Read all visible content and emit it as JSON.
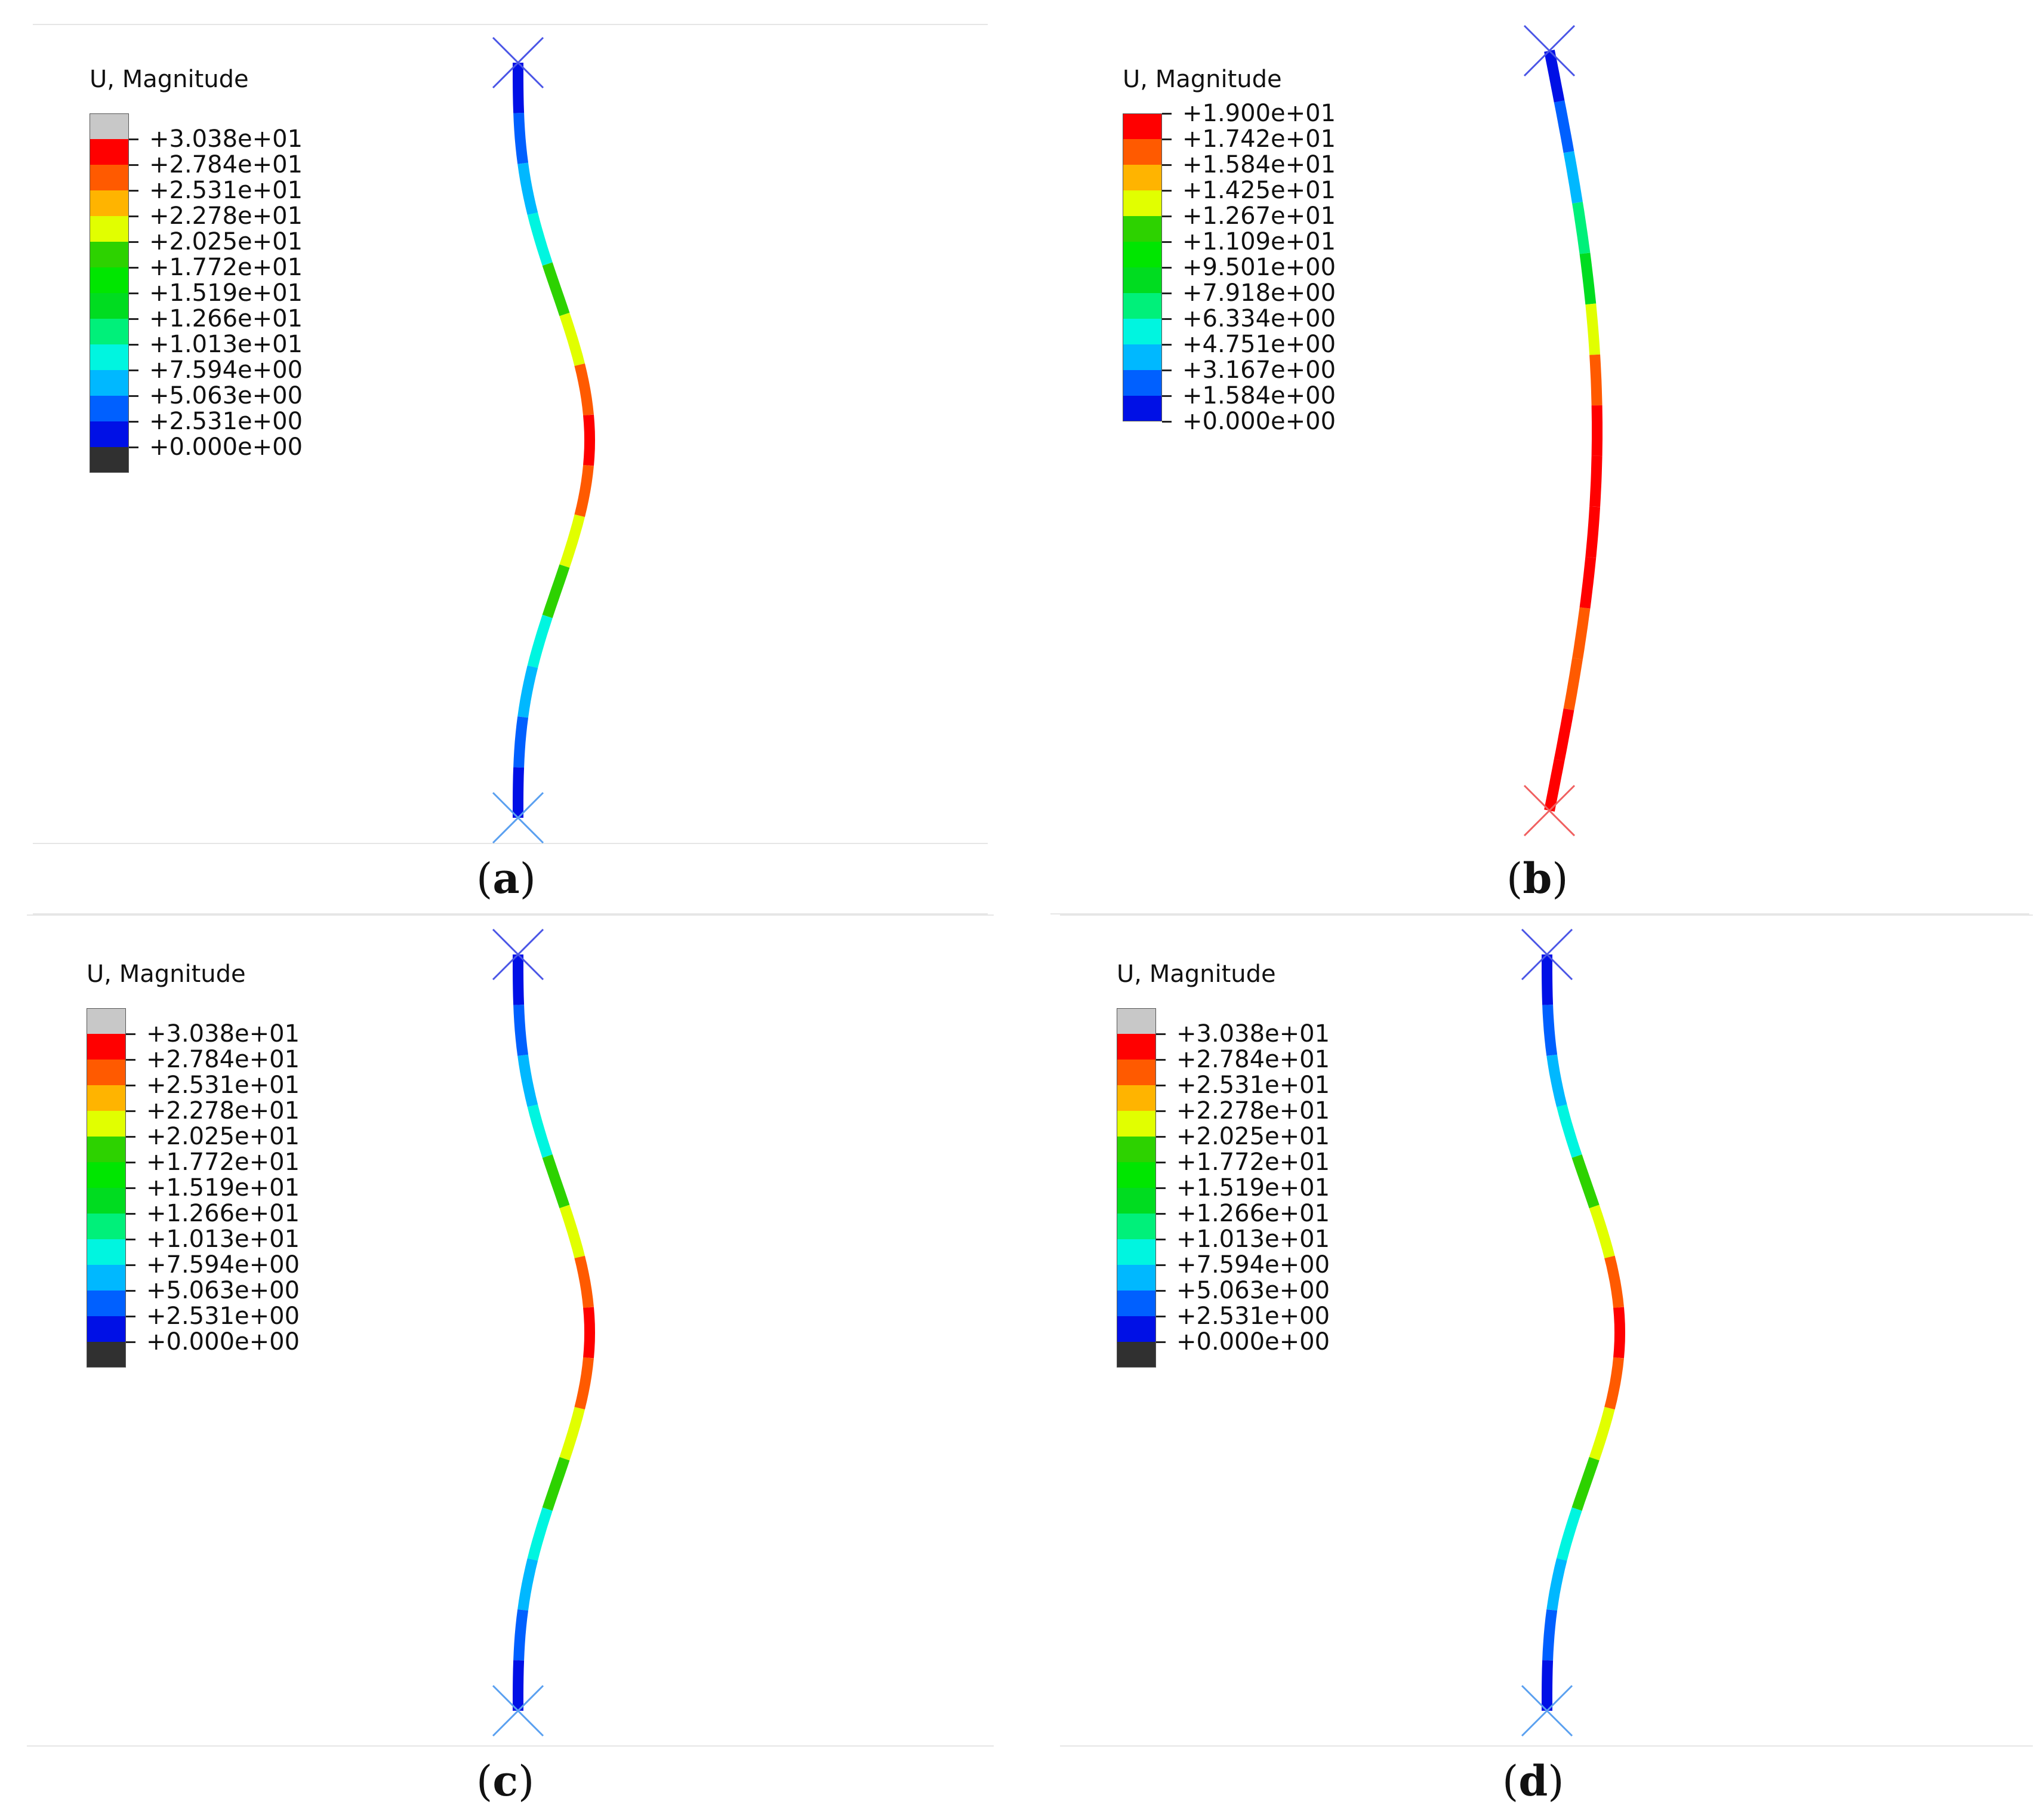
{
  "panels": [
    {
      "id": "a",
      "caption_letter": "a",
      "legend_title": "U, Magnitude",
      "legend_values": [
        "+3.038e+01",
        "+2.784e+01",
        "+2.531e+01",
        "+2.278e+01",
        "+2.025e+01",
        "+1.772e+01",
        "+1.519e+01",
        "+1.266e+01",
        "+1.013e+01",
        "+7.594e+00",
        "+5.063e+00",
        "+2.531e+00",
        "+0.000e+00"
      ],
      "legend_colors": [
        "#c8c8c8",
        "#ff0000",
        "#ff5a00",
        "#ffb400",
        "#e1ff00",
        "#2dd200",
        "#00e600",
        "#00dc20",
        "#00f07a",
        "#00f5e0",
        "#00b8ff",
        "#0060ff",
        "#0010e6",
        "#303030"
      ],
      "beam_profile": "sine",
      "beam_colors": [
        "#0010e6",
        "#0060ff",
        "#00b8ff",
        "#00f5e0",
        "#2dd200",
        "#e1ff00",
        "#ff5a00",
        "#ff0000",
        "#ff5a00",
        "#e1ff00",
        "#2dd200",
        "#00f5e0",
        "#00b8ff",
        "#0060ff",
        "#0010e6"
      ],
      "support_top_color": "#4a55e6",
      "support_bottom_color": "#5aa0f0"
    },
    {
      "id": "b",
      "caption_letter": "b",
      "legend_title": "U, Magnitude",
      "legend_values": [
        "+1.900e+01",
        "+1.742e+01",
        "+1.584e+01",
        "+1.425e+01",
        "+1.267e+01",
        "+1.109e+01",
        "+9.501e+00",
        "+7.918e+00",
        "+6.334e+00",
        "+4.751e+00",
        "+3.167e+00",
        "+1.584e+00",
        "+0.000e+00"
      ],
      "legend_colors": [
        "#ff0000",
        "#ff5a00",
        "#ffb400",
        "#e1ff00",
        "#2dd200",
        "#00e600",
        "#00dc20",
        "#00f07a",
        "#00f5e0",
        "#00b8ff",
        "#0060ff",
        "#0010e6"
      ],
      "beam_profile": "bow",
      "beam_colors": [
        "#0010e6",
        "#0060ff",
        "#00b8ff",
        "#00f07a",
        "#00dc20",
        "#e1ff00",
        "#ff5a00",
        "#ff0000",
        "#ff0000",
        "#ff0000",
        "#ff0000",
        "#ff5a00",
        "#ff5a00",
        "#ff0000",
        "#ff0000"
      ],
      "support_top_color": "#4a55e6",
      "support_bottom_color": "#f06060"
    },
    {
      "id": "c",
      "caption_letter": "c",
      "legend_title": "U, Magnitude",
      "legend_values": [
        "+3.038e+01",
        "+2.784e+01",
        "+2.531e+01",
        "+2.278e+01",
        "+2.025e+01",
        "+1.772e+01",
        "+1.519e+01",
        "+1.266e+01",
        "+1.013e+01",
        "+7.594e+00",
        "+5.063e+00",
        "+2.531e+00",
        "+0.000e+00"
      ],
      "legend_colors": [
        "#c8c8c8",
        "#ff0000",
        "#ff5a00",
        "#ffb400",
        "#e1ff00",
        "#2dd200",
        "#00e600",
        "#00dc20",
        "#00f07a",
        "#00f5e0",
        "#00b8ff",
        "#0060ff",
        "#0010e6",
        "#303030"
      ],
      "beam_profile": "sine",
      "beam_colors": [
        "#0010e6",
        "#0060ff",
        "#00b8ff",
        "#00f5e0",
        "#2dd200",
        "#e1ff00",
        "#ff5a00",
        "#ff0000",
        "#ff5a00",
        "#e1ff00",
        "#2dd200",
        "#00f5e0",
        "#00b8ff",
        "#0060ff",
        "#0010e6"
      ],
      "support_top_color": "#4a55e6",
      "support_bottom_color": "#5aa0f0"
    },
    {
      "id": "d",
      "caption_letter": "d",
      "legend_title": "U, Magnitude",
      "legend_values": [
        "+3.038e+01",
        "+2.784e+01",
        "+2.531e+01",
        "+2.278e+01",
        "+2.025e+01",
        "+1.772e+01",
        "+1.519e+01",
        "+1.266e+01",
        "+1.013e+01",
        "+7.594e+00",
        "+5.063e+00",
        "+2.531e+00",
        "+0.000e+00"
      ],
      "legend_colors": [
        "#c8c8c8",
        "#ff0000",
        "#ff5a00",
        "#ffb400",
        "#e1ff00",
        "#2dd200",
        "#00e600",
        "#00dc20",
        "#00f07a",
        "#00f5e0",
        "#00b8ff",
        "#0060ff",
        "#0010e6",
        "#303030"
      ],
      "beam_profile": "sine",
      "beam_colors": [
        "#0010e6",
        "#0060ff",
        "#00b8ff",
        "#00f5e0",
        "#2dd200",
        "#e1ff00",
        "#ff5a00",
        "#ff0000",
        "#ff5a00",
        "#e1ff00",
        "#2dd200",
        "#00f5e0",
        "#00b8ff",
        "#0060ff",
        "#0010e6"
      ],
      "support_top_color": "#4a55e6",
      "support_bottom_color": "#5aa0f0"
    }
  ]
}
